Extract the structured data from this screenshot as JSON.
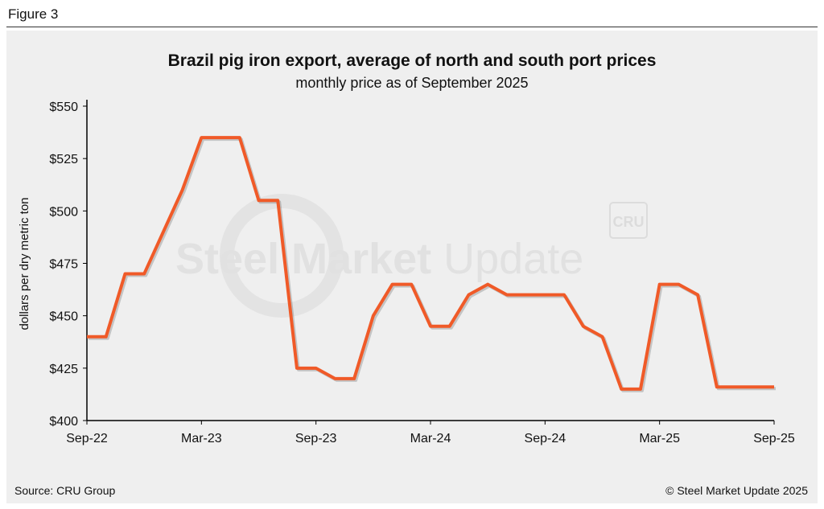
{
  "figure_label": "Figure 3",
  "source": "Source: CRU Group",
  "copyright": "© Steel Market Update 2025",
  "watermark": {
    "text": "Steel Market Update",
    "logo": "CRU"
  },
  "colors": {
    "line": "#f05a28",
    "panel": "#efefef"
  },
  "chart_data": {
    "type": "line",
    "title": "Brazil pig iron export, average of north and south port prices",
    "subtitle": "monthly price as of September 2025",
    "xlabel": "",
    "ylabel": "dollars per dry metric ton",
    "ylim": [
      400,
      550
    ],
    "yticks": [
      400,
      425,
      450,
      475,
      500,
      525,
      550
    ],
    "ytick_labels": [
      "$400",
      "$425",
      "$450",
      "$475",
      "$500",
      "$525",
      "$550"
    ],
    "xtick_labels": [
      "Sep-22",
      "Mar-23",
      "Sep-23",
      "Mar-24",
      "Sep-24",
      "Mar-25",
      "Sep-25"
    ],
    "grid": false,
    "series": [
      {
        "name": "Brazil pig iron export price",
        "values": [
          440,
          440,
          470,
          470,
          490,
          510,
          535,
          535,
          535,
          505,
          505,
          425,
          425,
          420,
          420,
          450,
          465,
          465,
          445,
          445,
          460,
          465,
          460,
          460,
          460,
          460,
          445,
          440,
          415,
          415,
          465,
          465,
          460,
          416,
          416,
          416,
          416
        ]
      }
    ]
  }
}
